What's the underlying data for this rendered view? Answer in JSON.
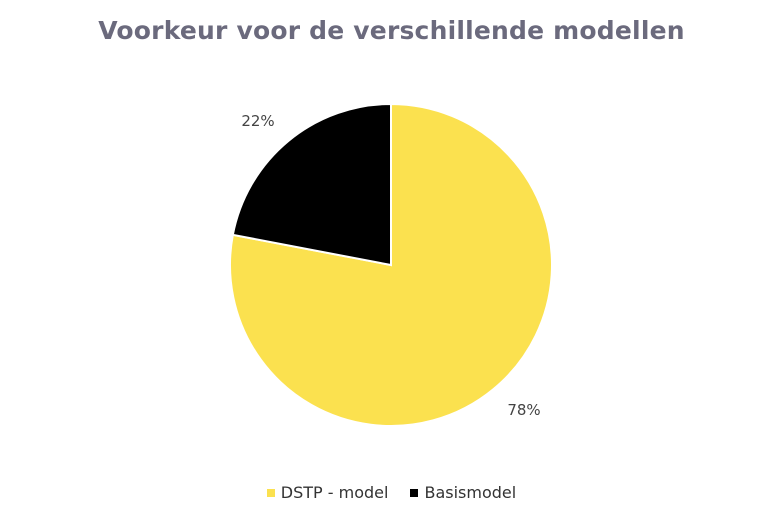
{
  "chart_data": {
    "type": "pie",
    "title": "Voorkeur voor de verschillende modellen",
    "categories": [
      "DSTP - model",
      "Basismodel"
    ],
    "values": [
      78,
      22
    ],
    "data_labels": [
      "78%",
      "22%"
    ],
    "colors": [
      "#fbe14f",
      "#000000"
    ],
    "legend_position": "bottom"
  }
}
